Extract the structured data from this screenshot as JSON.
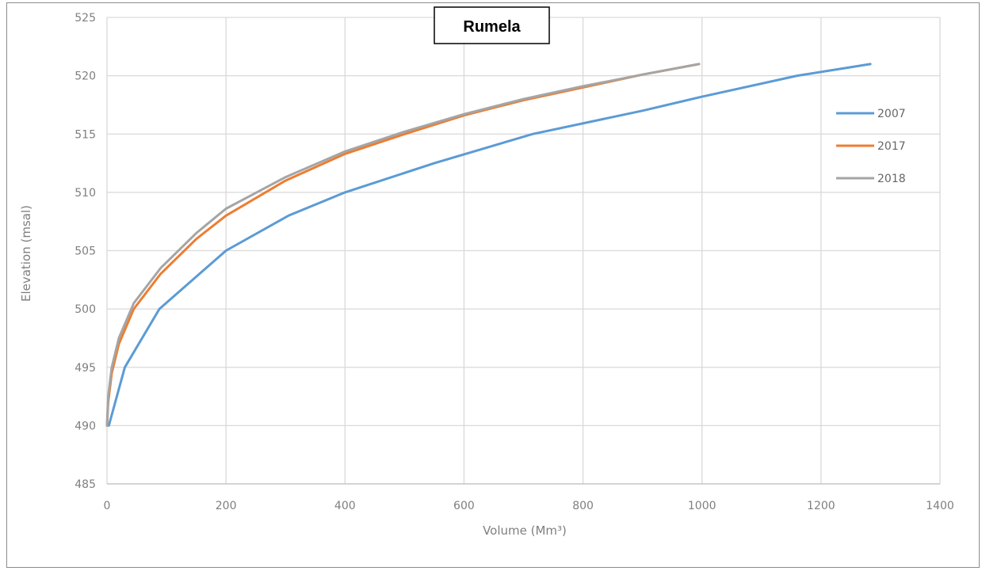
{
  "chart_data": {
    "type": "line",
    "title": "Rumela",
    "xlabel": "Volume (Mm³)",
    "ylabel": "Elevation (msal)",
    "xlim": [
      0,
      1400
    ],
    "ylim": [
      485,
      525
    ],
    "x_ticks": [
      "0",
      "200",
      "400",
      "600",
      "800",
      "1000",
      "1200",
      "1400"
    ],
    "y_ticks": [
      "485",
      "490",
      "495",
      "500",
      "505",
      "510",
      "515",
      "520",
      "525"
    ],
    "grid": true,
    "legend_position": "right",
    "series": [
      {
        "name": "2007",
        "color": "#5b9bd5",
        "x": [
          3,
          30,
          88,
          200,
          305,
          400,
          550,
          715,
          900,
          1000,
          1160,
          1283
        ],
        "y": [
          490,
          495,
          500,
          505,
          508,
          510,
          512.5,
          515,
          517,
          518.2,
          520,
          521
        ]
      },
      {
        "name": "2017",
        "color": "#ed7d31",
        "x": [
          0,
          2,
          8,
          20,
          45,
          90,
          150,
          200,
          300,
          400,
          500,
          600,
          700,
          800,
          900,
          995
        ],
        "y": [
          490,
          492,
          494.5,
          497,
          500,
          503,
          506,
          508,
          511,
          513.3,
          515,
          516.6,
          517.9,
          519,
          520.1,
          521
        ]
      },
      {
        "name": "2018",
        "color": "#a5a5a5",
        "x": [
          0,
          2,
          8,
          20,
          45,
          90,
          150,
          200,
          300,
          400,
          500,
          600,
          700,
          800,
          900,
          995
        ],
        "y": [
          490,
          492.5,
          495,
          497.5,
          500.5,
          503.5,
          506.5,
          508.6,
          511.3,
          513.5,
          515.2,
          516.7,
          518,
          519.1,
          520.1,
          521
        ]
      }
    ]
  }
}
